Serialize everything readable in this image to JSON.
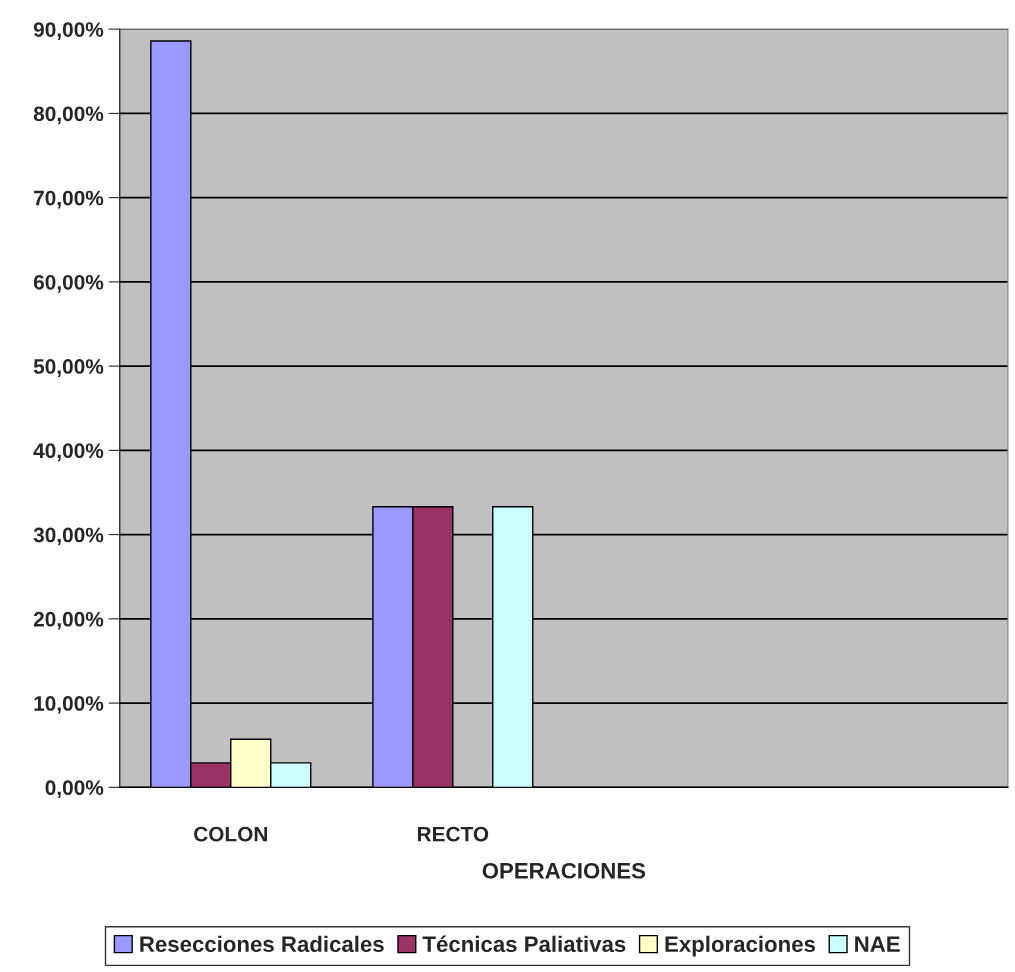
{
  "chart_data": {
    "type": "bar",
    "xlabel": "OPERACIONES",
    "categories": [
      "COLON",
      "RECTO",
      null,
      null
    ],
    "series": [
      {
        "name": "Resecciones Radicales",
        "color": "#9999ff",
        "values": [
          88.6,
          33.3,
          null,
          null
        ]
      },
      {
        "name": "Técnicas Paliativas",
        "color": "#993366",
        "values": [
          2.9,
          33.3,
          null,
          null
        ]
      },
      {
        "name": "Exploraciones",
        "color": "#ffffcc",
        "values": [
          5.7,
          null,
          null,
          null
        ]
      },
      {
        "name": "NAE",
        "color": "#ccffff",
        "values": [
          2.9,
          33.3,
          null,
          null
        ]
      }
    ],
    "ylim": [
      0,
      90
    ],
    "yticks": [
      {
        "value": 0,
        "label": "0,00%"
      },
      {
        "value": 10,
        "label": "10,00%"
      },
      {
        "value": 20,
        "label": "20,00%"
      },
      {
        "value": 30,
        "label": "30,00%"
      },
      {
        "value": 40,
        "label": "40,00%"
      },
      {
        "value": 50,
        "label": "50,00%"
      },
      {
        "value": 60,
        "label": "60,00%"
      },
      {
        "value": 70,
        "label": "70,00%"
      },
      {
        "value": 80,
        "label": "80,00%"
      },
      {
        "value": 90,
        "label": "90,00%"
      }
    ],
    "grid": "y",
    "legend": "bottom"
  }
}
